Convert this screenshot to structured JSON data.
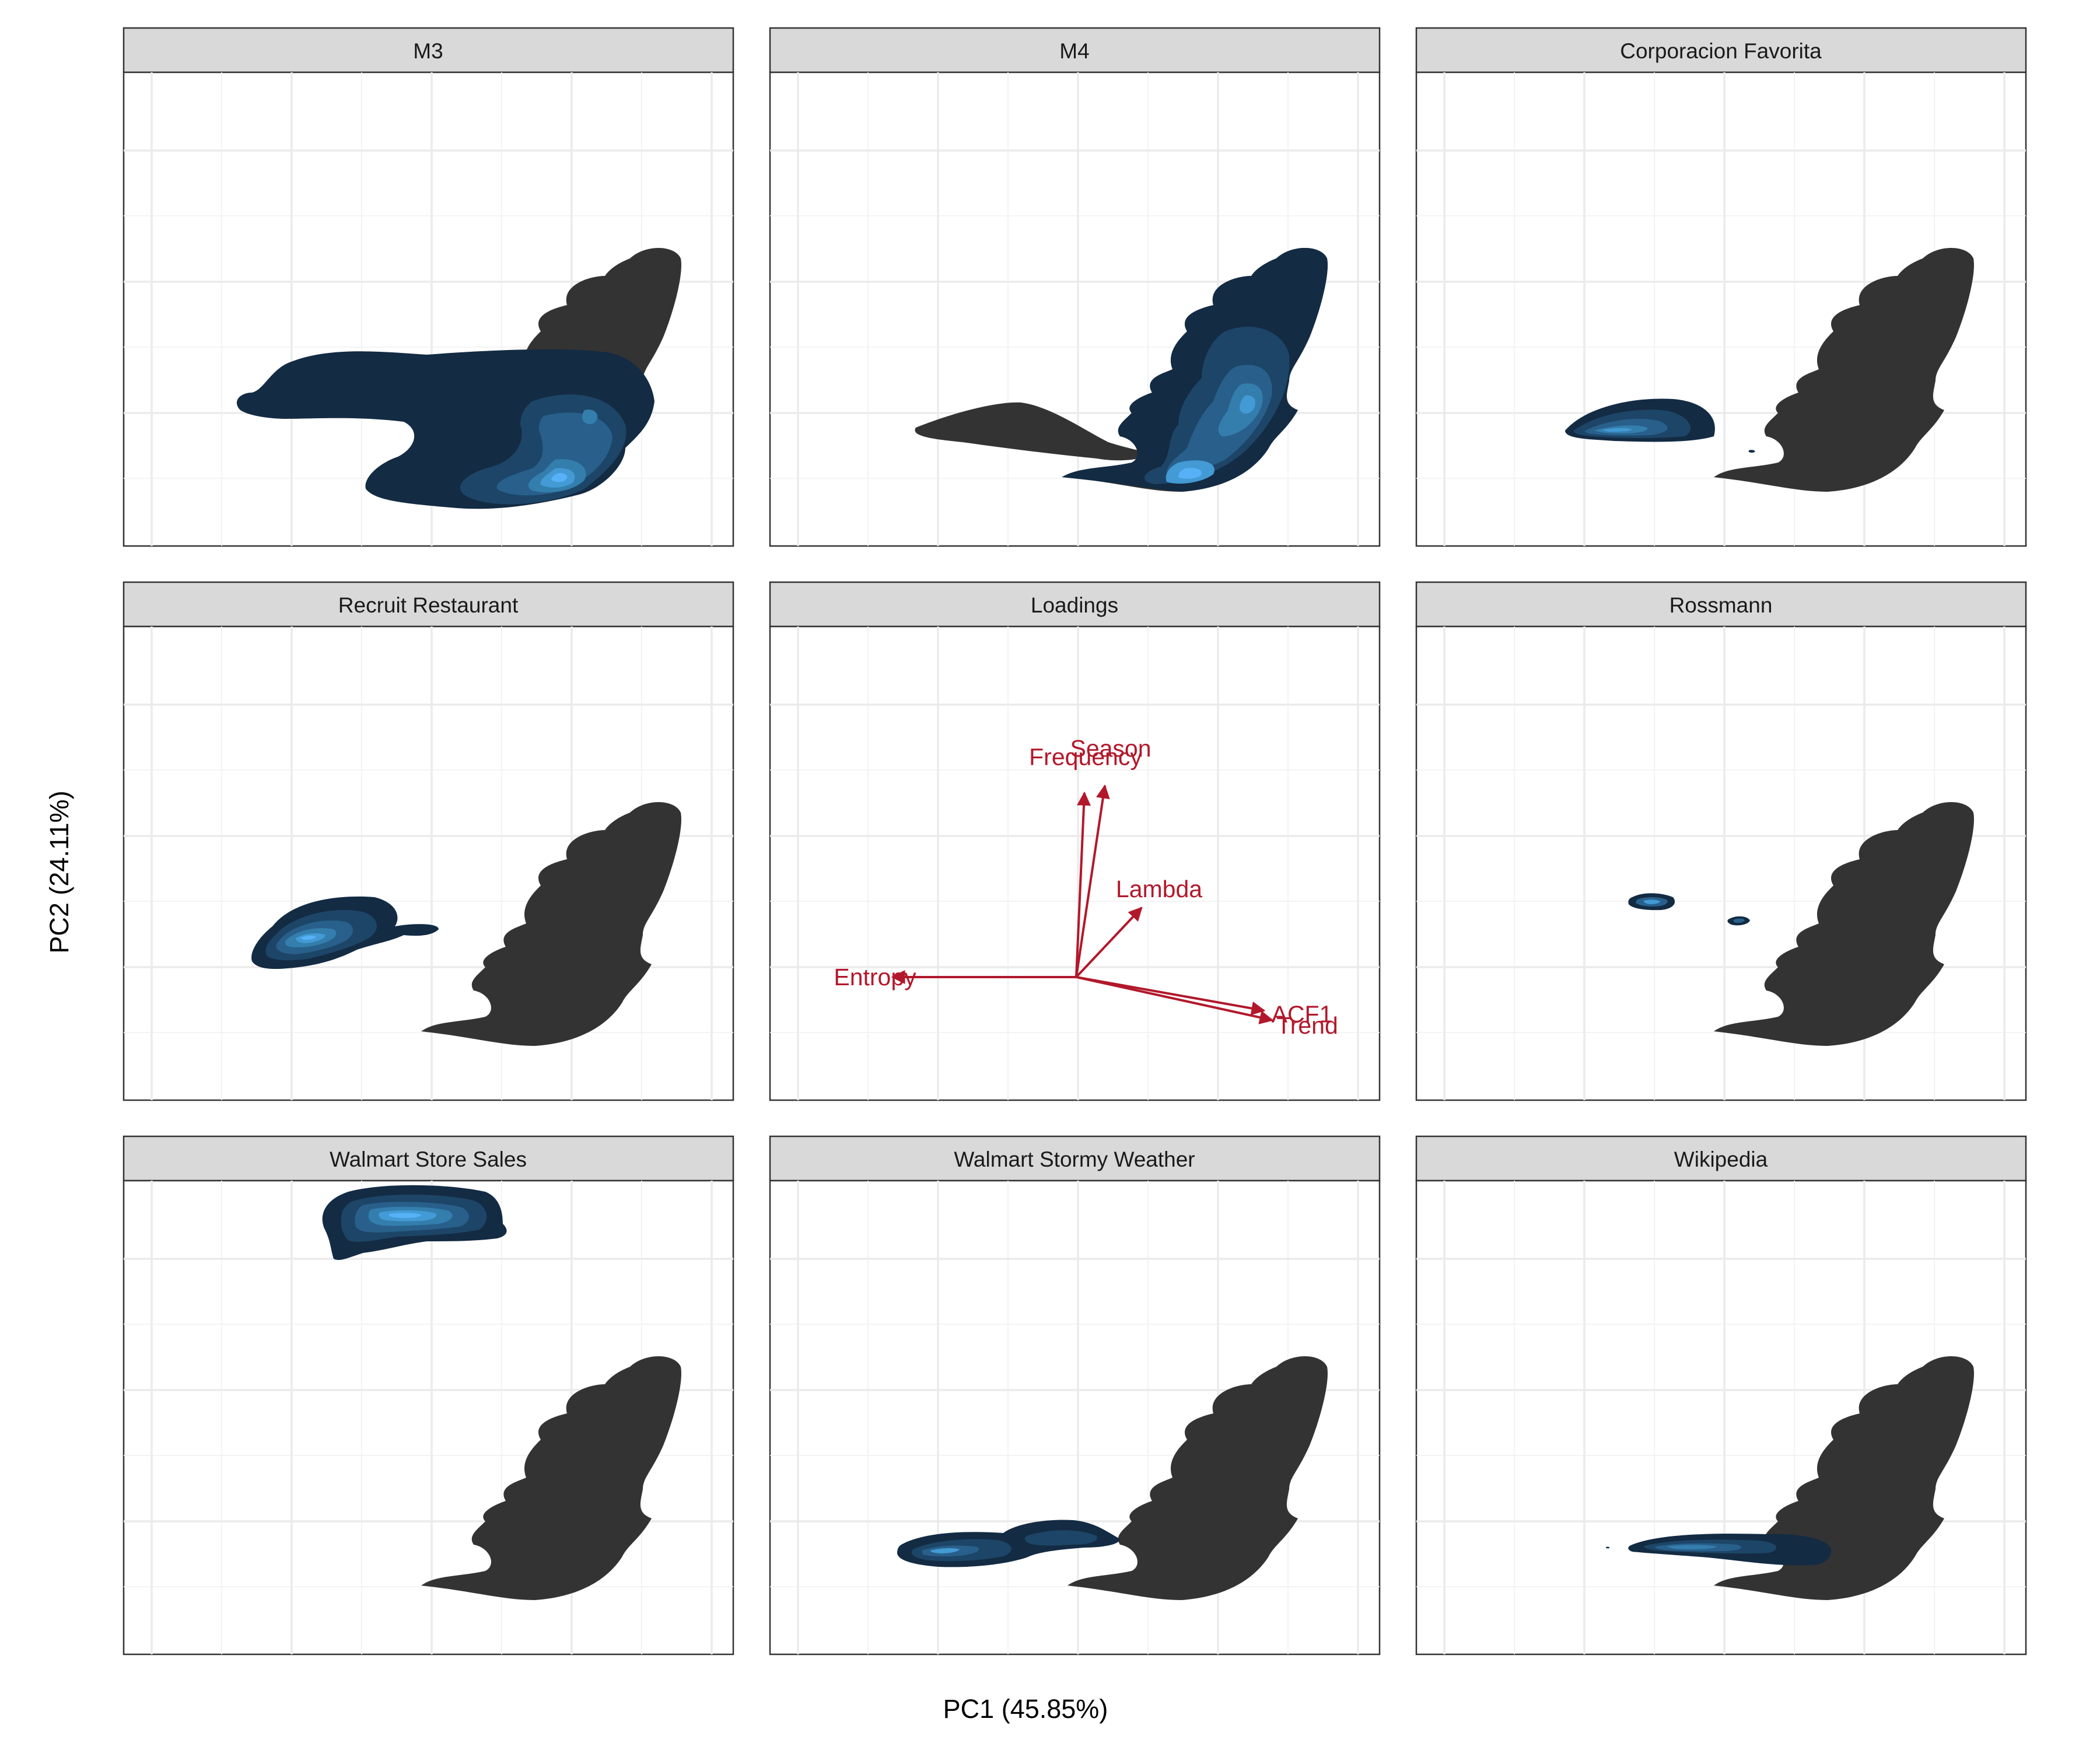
{
  "chart_data": {
    "type": "density-faceted",
    "xlabel": "PC1 (45.85%)",
    "ylabel": "PC2 (24.11%)",
    "grid": true,
    "x_tick_labels_shown": false,
    "y_tick_labels_shown": false,
    "colors": {
      "reference_density": "#333333",
      "density_low": "#132b43",
      "density_high": "#56b1f7",
      "loadings": "#b2182b"
    },
    "facets": [
      {
        "title": "M3",
        "kind": "density",
        "density_peak": {
          "pc1": 0.75,
          "pc2": -0.55
        }
      },
      {
        "title": "M4",
        "kind": "density",
        "density_peak": {
          "pc1": 1.05,
          "pc2": -0.45
        }
      },
      {
        "title": "Corporacion Favorita",
        "kind": "density",
        "density_peak": {
          "pc1": -0.55,
          "pc2": -0.15
        }
      },
      {
        "title": "Recruit Restaurant",
        "kind": "density",
        "density_peak": {
          "pc1": -0.95,
          "pc2": 0.25
        }
      },
      {
        "title": "Loadings",
        "kind": "loadings",
        "loadings": [
          {
            "name": "Season",
            "pc1": 0.14,
            "pc2": 0.8
          },
          {
            "name": "Frequency",
            "pc1": 0.04,
            "pc2": 0.77
          },
          {
            "name": "Lambda",
            "pc1": 0.32,
            "pc2": 0.29
          },
          {
            "name": "Entropy",
            "pc1": -0.9,
            "pc2": 0.0
          },
          {
            "name": "ACF1",
            "pc1": 0.92,
            "pc2": -0.14
          },
          {
            "name": "Trend",
            "pc1": 0.96,
            "pc2": -0.18
          }
        ]
      },
      {
        "title": "Rossmann",
        "kind": "density",
        "density_peak": {
          "pc1": -0.3,
          "pc2": 0.3
        }
      },
      {
        "title": "Walmart Store Sales",
        "kind": "density",
        "density_peak": {
          "pc1": -0.2,
          "pc2": 1.6
        }
      },
      {
        "title": "Walmart Stormy Weather",
        "kind": "density",
        "density_peak": {
          "pc1": -0.65,
          "pc2": -0.05
        }
      },
      {
        "title": "Wikipedia",
        "kind": "density",
        "density_peak": {
          "pc1": 0.3,
          "pc2": -0.1
        }
      }
    ]
  }
}
